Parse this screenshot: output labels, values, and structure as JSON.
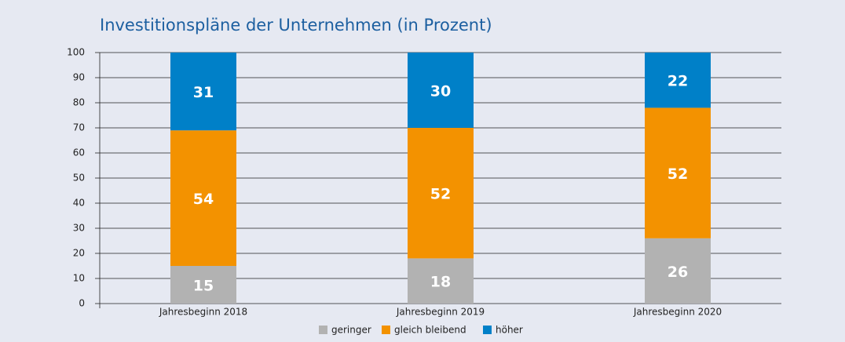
{
  "chart_data": {
    "type": "stacked_bar",
    "title": "Investitionspläne der Unternehmen (in Prozent)",
    "categories": [
      "Jahresbeginn 2018",
      "Jahresbeginn 2019",
      "Jahresbeginn 2020"
    ],
    "series": [
      {
        "name": "geringer",
        "color": "#b2b2b2",
        "values": [
          15,
          18,
          26
        ]
      },
      {
        "name": "gleich bleibend",
        "color": "#f39200",
        "values": [
          54,
          52,
          52
        ]
      },
      {
        "name": "höher",
        "color": "#0080c8",
        "values": [
          31,
          30,
          22
        ]
      }
    ],
    "ylim": [
      0,
      100
    ],
    "yticks": [
      0,
      10,
      20,
      30,
      40,
      50,
      60,
      70,
      80,
      90,
      100
    ],
    "grid": true,
    "legend": "bottom"
  }
}
